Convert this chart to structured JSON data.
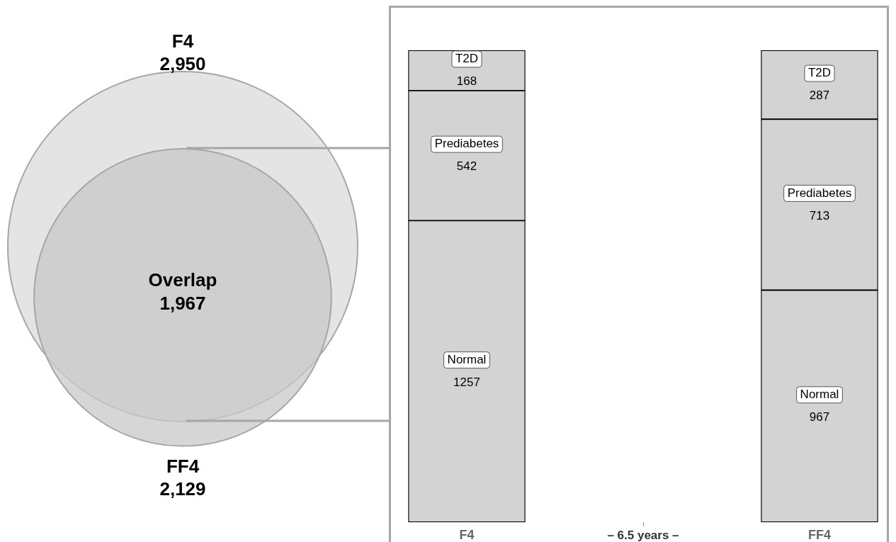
{
  "chart_data": [
    {
      "type": "other",
      "categories": [
        "F4",
        "Overlap",
        "FF4"
      ],
      "values": [
        2950,
        1967,
        2129
      ],
      "value_labels": [
        "2,950",
        "1,967",
        "2,129"
      ]
    },
    {
      "type": "bar",
      "categories": [
        "F4",
        "FF4"
      ],
      "xlabel": "– 6.5 years –",
      "stacked": true,
      "ylim": [
        0,
        1967
      ],
      "tick_labels": "x",
      "grid": false,
      "legend": false,
      "data_labels": true,
      "series": [
        {
          "name": "Normal",
          "color": "#d3d3d3",
          "values": [
            1257,
            967
          ]
        },
        {
          "name": "Prediabetes",
          "color": "#d3d3d3",
          "values": [
            542,
            713
          ]
        },
        {
          "name": "T2D",
          "color": "#d3d3d3",
          "values": [
            168,
            287
          ]
        }
      ]
    }
  ]
}
